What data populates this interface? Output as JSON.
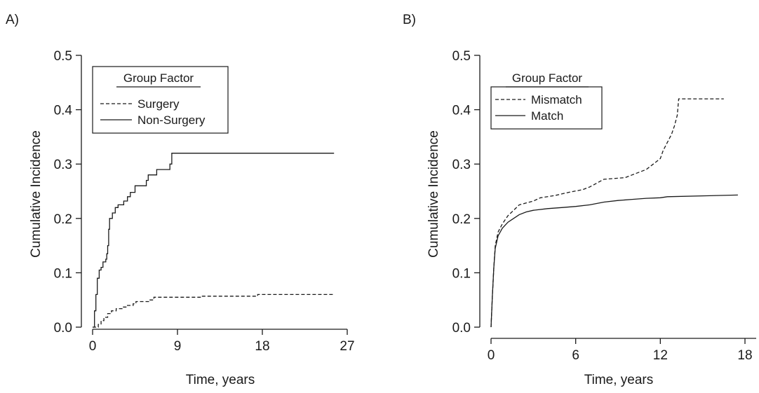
{
  "chart_data": [
    {
      "type": "line",
      "panel_label": "A)",
      "xlabel": "Time, years",
      "ylabel": "Cumulative Incidence",
      "xlim": [
        0,
        27
      ],
      "ylim": [
        0,
        0.5
      ],
      "xticks": [
        0,
        9,
        18,
        27
      ],
      "yticks": [
        0.0,
        0.1,
        0.2,
        0.3,
        0.4,
        0.5
      ],
      "x_tick_labels": [
        "0",
        "9",
        "18",
        "27"
      ],
      "y_tick_labels": [
        "0.0",
        "0.1",
        "0.2",
        "0.3",
        "0.4",
        "0.5"
      ],
      "legend": {
        "title": "Group Factor",
        "placement": "top-left",
        "entries": [
          {
            "label": "Surgery",
            "style": "dashed"
          },
          {
            "label": "Non-Surgery",
            "style": "solid"
          }
        ]
      },
      "series": [
        {
          "name": "Surgery",
          "style": "dashed",
          "step": true,
          "points": [
            [
              0,
              0
            ],
            [
              0.3,
              0
            ],
            [
              0.6,
              0.005
            ],
            [
              0.9,
              0.012
            ],
            [
              1.2,
              0.018
            ],
            [
              1.6,
              0.025
            ],
            [
              2.0,
              0.03
            ],
            [
              2.5,
              0.034
            ],
            [
              3.2,
              0.037
            ],
            [
              3.6,
              0.04
            ],
            [
              4.3,
              0.043
            ],
            [
              4.6,
              0.047
            ],
            [
              6.0,
              0.05
            ],
            [
              6.5,
              0.055
            ],
            [
              11.5,
              0.057
            ],
            [
              17.5,
              0.06
            ],
            [
              25.6,
              0.06
            ]
          ]
        },
        {
          "name": "Non-Surgery",
          "style": "solid",
          "step": true,
          "points": [
            [
              0,
              0
            ],
            [
              0.2,
              0.03
            ],
            [
              0.35,
              0.06
            ],
            [
              0.5,
              0.09
            ],
            [
              0.7,
              0.105
            ],
            [
              0.9,
              0.11
            ],
            [
              1.1,
              0.12
            ],
            [
              1.4,
              0.125
            ],
            [
              1.5,
              0.135
            ],
            [
              1.6,
              0.15
            ],
            [
              1.7,
              0.18
            ],
            [
              1.8,
              0.2
            ],
            [
              2.1,
              0.21
            ],
            [
              2.4,
              0.22
            ],
            [
              2.7,
              0.225
            ],
            [
              3.3,
              0.232
            ],
            [
              3.7,
              0.24
            ],
            [
              4.0,
              0.248
            ],
            [
              4.5,
              0.26
            ],
            [
              5.7,
              0.27
            ],
            [
              5.9,
              0.28
            ],
            [
              6.8,
              0.29
            ],
            [
              8.2,
              0.3
            ],
            [
              8.4,
              0.32
            ],
            [
              25.6,
              0.32
            ]
          ]
        }
      ]
    },
    {
      "type": "line",
      "panel_label": "B)",
      "xlabel": "Time, years",
      "ylabel": "Cumulative Incidence",
      "xlim": [
        0,
        18
      ],
      "ylim": [
        0,
        0.5
      ],
      "xticks": [
        0,
        6,
        12,
        18
      ],
      "yticks": [
        0.0,
        0.1,
        0.2,
        0.3,
        0.4,
        0.5
      ],
      "x_tick_labels": [
        "0",
        "6",
        "12",
        "18"
      ],
      "y_tick_labels": [
        "0.0",
        "0.1",
        "0.2",
        "0.3",
        "0.4",
        "0.5"
      ],
      "legend": {
        "title": "Group Factor",
        "placement": "top-left",
        "entries": [
          {
            "label": "Mismatch",
            "style": "dashed"
          },
          {
            "label": "Match",
            "style": "solid"
          }
        ]
      },
      "series": [
        {
          "name": "Mismatch",
          "style": "dashed",
          "step": false,
          "points": [
            [
              0,
              0
            ],
            [
              0.1,
              0.06
            ],
            [
              0.2,
              0.11
            ],
            [
              0.3,
              0.15
            ],
            [
              0.5,
              0.175
            ],
            [
              0.8,
              0.19
            ],
            [
              1.2,
              0.205
            ],
            [
              1.6,
              0.215
            ],
            [
              2.0,
              0.225
            ],
            [
              3.0,
              0.232
            ],
            [
              3.5,
              0.238
            ],
            [
              4.5,
              0.242
            ],
            [
              5.5,
              0.248
            ],
            [
              6.5,
              0.253
            ],
            [
              7.0,
              0.258
            ],
            [
              7.5,
              0.265
            ],
            [
              8.0,
              0.272
            ],
            [
              9.5,
              0.275
            ],
            [
              10.0,
              0.28
            ],
            [
              10.5,
              0.285
            ],
            [
              11.0,
              0.29
            ],
            [
              11.5,
              0.3
            ],
            [
              12.0,
              0.31
            ],
            [
              12.2,
              0.325
            ],
            [
              12.5,
              0.34
            ],
            [
              12.8,
              0.355
            ],
            [
              13.0,
              0.37
            ],
            [
              13.2,
              0.39
            ],
            [
              13.3,
              0.42
            ],
            [
              16.5,
              0.42
            ]
          ]
        },
        {
          "name": "Match",
          "style": "solid",
          "step": false,
          "points": [
            [
              0,
              0
            ],
            [
              0.1,
              0.06
            ],
            [
              0.2,
              0.11
            ],
            [
              0.3,
              0.145
            ],
            [
              0.5,
              0.168
            ],
            [
              0.8,
              0.182
            ],
            [
              1.2,
              0.193
            ],
            [
              1.6,
              0.2
            ],
            [
              2.0,
              0.207
            ],
            [
              2.5,
              0.212
            ],
            [
              3.0,
              0.215
            ],
            [
              4.0,
              0.218
            ],
            [
              5.0,
              0.22
            ],
            [
              6.0,
              0.222
            ],
            [
              7.0,
              0.225
            ],
            [
              8.0,
              0.23
            ],
            [
              9.0,
              0.233
            ],
            [
              10.0,
              0.235
            ],
            [
              11.0,
              0.237
            ],
            [
              12.0,
              0.238
            ],
            [
              12.5,
              0.24
            ],
            [
              17.5,
              0.243
            ]
          ]
        }
      ]
    }
  ]
}
